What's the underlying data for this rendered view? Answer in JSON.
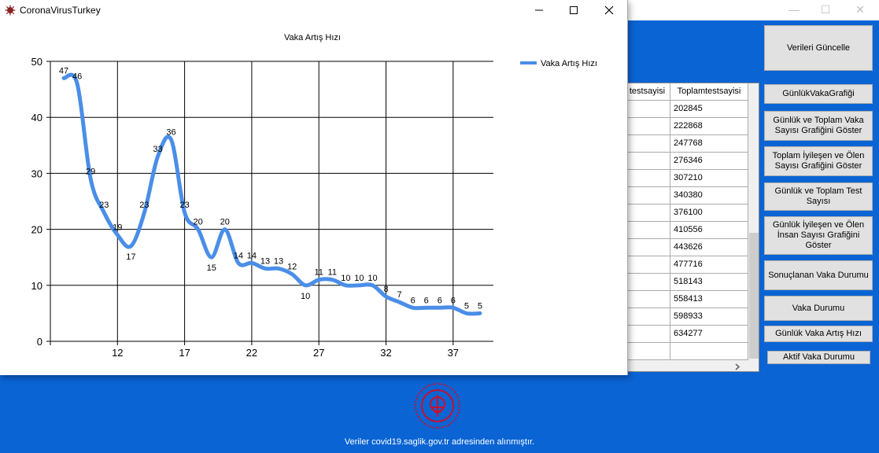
{
  "main_window": {
    "controls": {
      "minimize": "—",
      "maximize": "☐",
      "close": "✕"
    },
    "buttons": {
      "update": "Verileri Güncelle",
      "daily_case_chart": "GünlükVakaGrafiği",
      "daily_total_case": "Günlük ve Toplam Vaka Sayısı Grafiğini Göster",
      "total_recovered_dead": "Toplam İyileşen ve Ölen Sayısı Grafiğini Göster",
      "daily_total_test": "Günlük ve Toplam Test Sayısı",
      "daily_recovered_dead": "Günlük İyileşen ve Ölen İnsan Sayısı Grafiğini Göster",
      "concluded_case": "Sonuçlanan Vaka Durumu",
      "case_status": "Vaka Durumu",
      "daily_case_rate": "Günlük Vaka Artış Hızı",
      "active_case": "Aktif Vaka Durumu"
    },
    "grid": {
      "col_a_header": "testsayisi",
      "col_b_header": "Toplamtestsayisi",
      "rows": [
        "202845",
        "222868",
        "247768",
        "276346",
        "307210",
        "340380",
        "376100",
        "410556",
        "443626",
        "477716",
        "518143",
        "558413",
        "598933",
        "634277",
        ""
      ]
    },
    "footer": "Veriler covid19.saglik.gov.tr adresinden alınmıştır."
  },
  "chart_window": {
    "title": "CoronaVirusTurkey",
    "controls": {
      "minimize": "—",
      "maximize": "☐",
      "close": "✕"
    }
  },
  "colors": {
    "blue_background": "#0a64d4",
    "series_line": "#4a8ee8"
  },
  "chart_data": {
    "type": "line",
    "title": "Vaka Artış Hızı",
    "xlabel": "",
    "ylabel": "",
    "xlim": [
      7,
      40
    ],
    "ylim": [
      0,
      50
    ],
    "x_ticks": [
      12,
      17,
      22,
      27,
      32,
      37
    ],
    "y_ticks": [
      0,
      10,
      20,
      30,
      40,
      50
    ],
    "grid": true,
    "legend_position": "top-right",
    "series": [
      {
        "name": "Vaka Artış Hızı",
        "x": [
          8,
          9,
          10,
          11,
          12,
          13,
          14,
          15,
          16,
          17,
          18,
          19,
          20,
          21,
          22,
          23,
          24,
          25,
          26,
          27,
          28,
          29,
          30,
          31,
          32,
          33,
          34,
          35,
          36,
          37,
          38,
          39
        ],
        "values": [
          47,
          46,
          29,
          23,
          19,
          17,
          23,
          33,
          36,
          23,
          20,
          15,
          20,
          14,
          14,
          13,
          13,
          12,
          10,
          11,
          11,
          10,
          10,
          10,
          8,
          7,
          6,
          6,
          6,
          6,
          5,
          5
        ]
      }
    ]
  }
}
